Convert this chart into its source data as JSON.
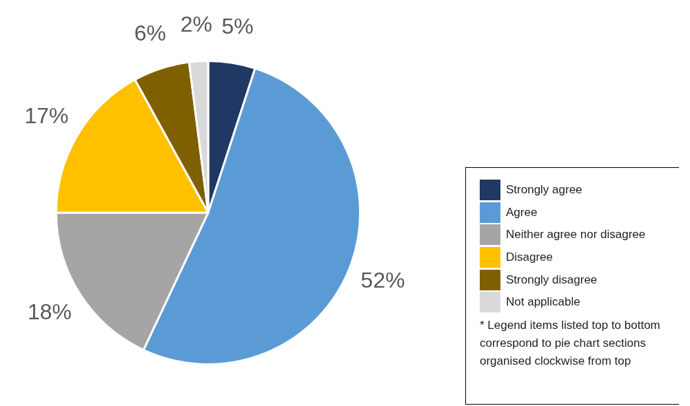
{
  "chart_data": {
    "type": "pie",
    "categories": [
      "Strongly agree",
      "Agree",
      "Neither agree nor disagree",
      "Disagree",
      "Strongly disagree",
      "Not applicable"
    ],
    "values": [
      5,
      52,
      18,
      17,
      6,
      2
    ],
    "value_labels": [
      "5%",
      "52%",
      "18%",
      "17%",
      "6%",
      "2%"
    ],
    "colors": [
      "#1f3864",
      "#5b9bd5",
      "#a5a5a5",
      "#ffc000",
      "#7f6000",
      "#d9d9d9"
    ],
    "legend": "right",
    "annotations": [
      "* Legend items listed top to bottom correspond to pie chart sections organised clockwise from top"
    ]
  }
}
